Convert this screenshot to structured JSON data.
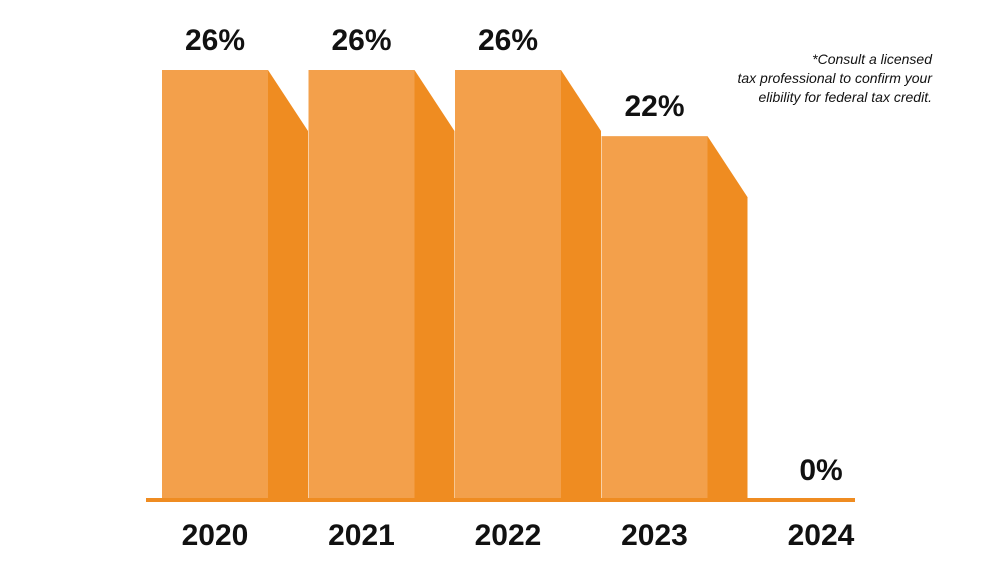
{
  "chart_data": {
    "type": "bar",
    "categories": [
      "2020",
      "2021",
      "2022",
      "2023",
      "2024"
    ],
    "values": [
      26,
      26,
      26,
      22,
      0
    ],
    "value_labels": [
      "26%",
      "26%",
      "26%",
      "22%",
      "0%"
    ],
    "ylim": [
      0,
      26
    ],
    "grid": false,
    "legend": "none",
    "colors": {
      "bar_face": "#f3a04b",
      "bar_side": "#ef8c21",
      "baseline": "#ef8c21",
      "text": "#111111"
    },
    "annotation": {
      "lines": [
        "*Consult a licensed",
        "tax professional to confirm your",
        "elibility for federal tax credit."
      ]
    }
  }
}
